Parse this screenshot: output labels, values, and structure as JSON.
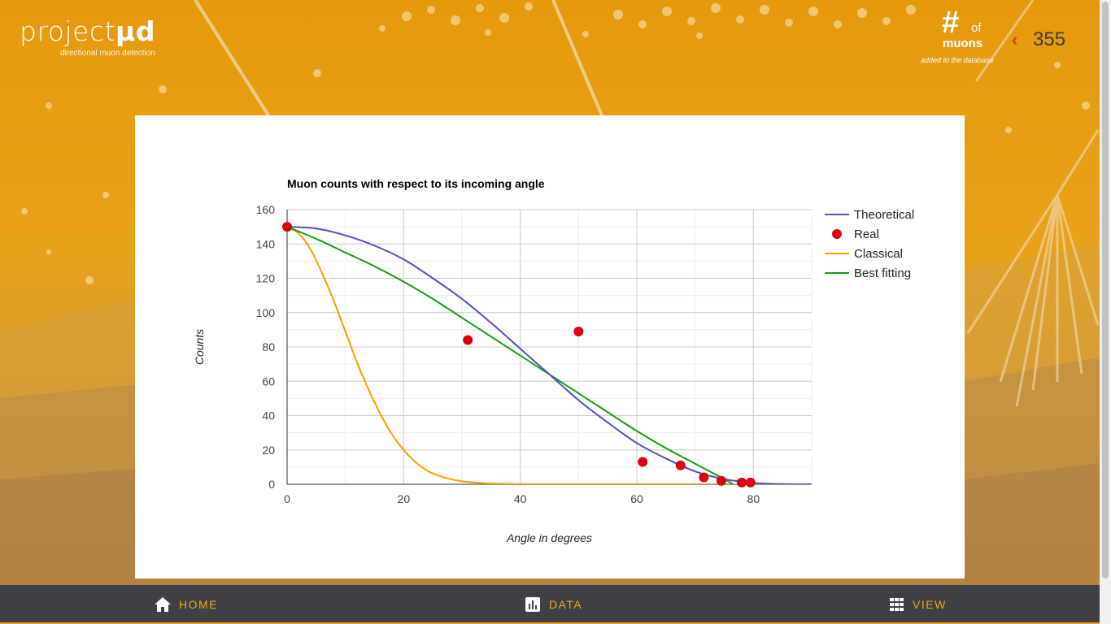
{
  "brand": {
    "name_light": "project",
    "name_bold": "µd",
    "tagline": "directional muon detection"
  },
  "counter": {
    "hash": "#",
    "of": "of",
    "label": "muons",
    "subtitle": "added to the database",
    "value": "355",
    "chevron": "‹"
  },
  "nav": {
    "items": [
      {
        "label": "HOME",
        "icon": "home-icon"
      },
      {
        "label": "DATA",
        "icon": "bar-chart-icon"
      },
      {
        "label": "VIEW",
        "icon": "grid-icon"
      }
    ]
  },
  "colors": {
    "accent": "#f0a820",
    "nav_bg": "#3f4046",
    "theoretical": "#4f4fc4",
    "real": "#dd0010",
    "classical": "#ff9900",
    "best_fitting": "#109e10"
  },
  "chart_data": {
    "type": "line",
    "title": "Muon counts with respect to its incoming angle",
    "xlabel": "Angle in degrees",
    "ylabel": "Counts",
    "xlim": [
      0,
      90
    ],
    "ylim": [
      0,
      160
    ],
    "xticks": [
      0,
      20,
      40,
      60,
      80
    ],
    "yticks": [
      0,
      20,
      40,
      60,
      80,
      100,
      120,
      140,
      160
    ],
    "grid": true,
    "legend_position": "right",
    "series": [
      {
        "name": "Theoretical",
        "kind": "line",
        "x": [
          0,
          5,
          10,
          15,
          20,
          25,
          30,
          35,
          40,
          45,
          50,
          55,
          60,
          65,
          70,
          75,
          80,
          85,
          90
        ],
        "y": [
          150,
          149,
          145,
          139,
          131,
          120,
          108,
          94,
          79,
          64,
          49,
          36,
          24,
          15,
          7.5,
          3,
          0.8,
          0.1,
          0
        ]
      },
      {
        "name": "Real",
        "kind": "scatter",
        "x": [
          0,
          31,
          50,
          61,
          67.5,
          71.5,
          74.5,
          78,
          79.5
        ],
        "y": [
          150,
          84,
          89,
          13,
          11,
          4,
          2,
          1,
          1
        ]
      },
      {
        "name": "Classical",
        "kind": "line",
        "x": [
          0,
          2,
          4,
          6,
          8,
          10,
          12,
          14,
          16,
          18,
          20,
          22,
          24,
          26,
          28,
          30,
          33,
          36,
          40,
          45,
          50,
          60,
          70,
          80,
          90
        ],
        "y": [
          150,
          146,
          137,
          123,
          107,
          89,
          71,
          55,
          41,
          29,
          20,
          13,
          8,
          5,
          3,
          1.8,
          0.8,
          0.3,
          0.05,
          0,
          0,
          0,
          0,
          0,
          0
        ]
      },
      {
        "name": "Best fitting",
        "kind": "line",
        "x": [
          0,
          5,
          10,
          15,
          20,
          25,
          30,
          35,
          40,
          45,
          50,
          55,
          60,
          65,
          70,
          75,
          76.5
        ],
        "y": [
          150,
          143,
          135,
          127,
          118,
          108,
          97,
          86,
          75,
          64,
          53,
          42,
          31,
          21,
          12,
          3,
          0
        ]
      }
    ]
  }
}
